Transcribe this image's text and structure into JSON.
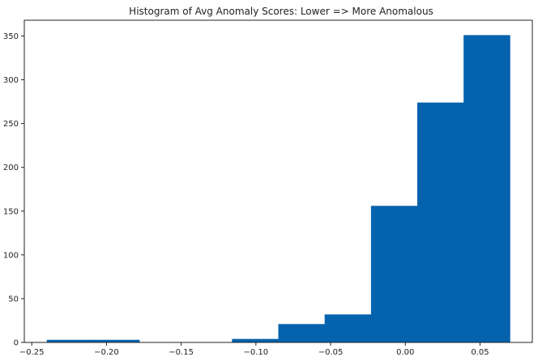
{
  "chart_data": {
    "type": "bar",
    "title": "Histogram of Avg Anomaly Scores: Lower => More Anomalous",
    "xlabel": "",
    "ylabel": "",
    "bin_edges": [
      -0.24,
      -0.209,
      -0.178,
      -0.147,
      -0.116,
      -0.085,
      -0.054,
      -0.023,
      0.008,
      0.039,
      0.07
    ],
    "values": [
      3,
      3,
      0,
      0,
      4,
      21,
      32,
      156,
      274,
      351
    ],
    "xlim": [
      -0.255,
      0.085
    ],
    "ylim": [
      0,
      368
    ],
    "x_ticks": [
      -0.25,
      -0.2,
      -0.15,
      -0.1,
      -0.05,
      0.0,
      0.05
    ],
    "x_tick_labels": [
      "−0.25",
      "−0.20",
      "−0.15",
      "−0.10",
      "−0.05",
      "0.00",
      "0.05"
    ],
    "y_ticks": [
      0,
      50,
      100,
      150,
      200,
      250,
      300,
      350
    ],
    "y_tick_labels": [
      "0",
      "50",
      "100",
      "150",
      "200",
      "250",
      "300",
      "350"
    ],
    "grid": false,
    "bar_color": "#0562ad"
  }
}
